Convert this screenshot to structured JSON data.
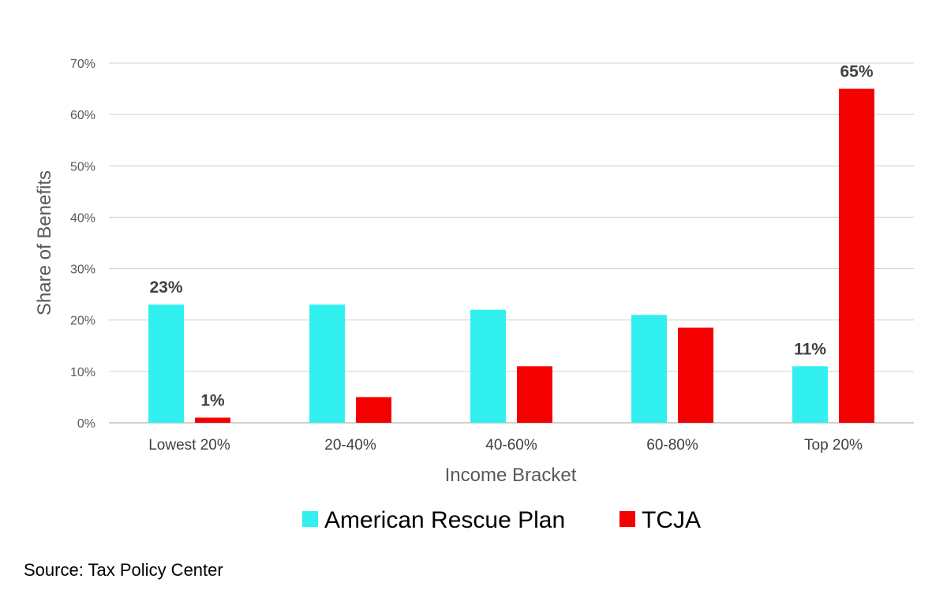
{
  "chart_data": {
    "type": "bar",
    "title": "",
    "xlabel": "Income Bracket",
    "ylabel": "Share of  Benefits",
    "categories": [
      "Lowest 20%",
      "20-40%",
      "40-60%",
      "60-80%",
      "Top 20%"
    ],
    "series": [
      {
        "name": "American Rescue Plan",
        "color": "#33F0F0",
        "values": [
          23,
          23,
          22,
          21,
          11
        ],
        "data_labels": [
          "23%",
          null,
          null,
          null,
          "11%"
        ]
      },
      {
        "name": "TCJA",
        "color": "#F50000",
        "values": [
          1,
          5,
          11,
          18.5,
          65
        ],
        "data_labels": [
          "1%",
          null,
          null,
          null,
          "65%"
        ]
      }
    ],
    "ylim": [
      0,
      70
    ],
    "yticks": [
      0,
      10,
      20,
      30,
      40,
      50,
      60,
      70
    ],
    "ytick_labels": [
      "0%",
      "10%",
      "20%",
      "30%",
      "40%",
      "50%",
      "60%",
      "70%"
    ],
    "grid": true,
    "legend": "bottom"
  },
  "source": "Source: Tax Policy Center"
}
